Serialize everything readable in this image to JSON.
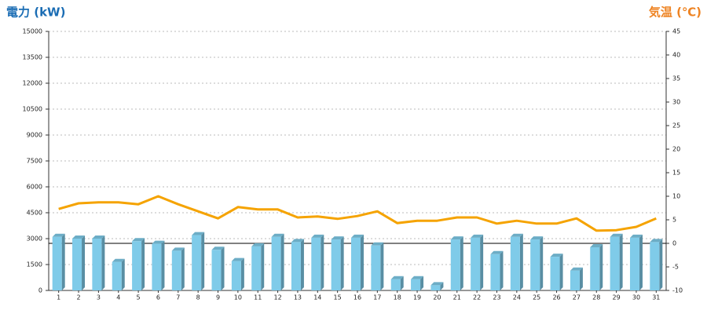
{
  "chart_data": {
    "type": "bar-line",
    "y_title": "電力 (kW)",
    "y2_title": "気温 (℃)",
    "categories": [
      "1",
      "2",
      "3",
      "4",
      "5",
      "6",
      "7",
      "8",
      "9",
      "10",
      "11",
      "12",
      "13",
      "14",
      "15",
      "16",
      "17",
      "18",
      "19",
      "20",
      "21",
      "22",
      "23",
      "24",
      "25",
      "26",
      "27",
      "28",
      "29",
      "30",
      "31"
    ],
    "series": [
      {
        "type": "bar",
        "color": "#7fcbe9",
        "values": [
          3100,
          3000,
          3000,
          1650,
          2850,
          2700,
          2300,
          3200,
          2350,
          1700,
          2550,
          3100,
          2800,
          3050,
          2950,
          3050,
          2600,
          650,
          650,
          300,
          2950,
          3050,
          2100,
          3100,
          2950,
          1950,
          1150,
          2500,
          3100,
          3050,
          2800
        ]
      },
      {
        "type": "line",
        "axis": "y2",
        "color": "#f5a300",
        "values": [
          7.3,
          8.5,
          8.7,
          8.7,
          8.3,
          10,
          8.3,
          6.8,
          5.3,
          7.7,
          7.2,
          7.2,
          5.5,
          5.7,
          5.2,
          5.8,
          6.8,
          4.3,
          4.8,
          4.8,
          5.5,
          5.5,
          4.2,
          4.8,
          4.2,
          4.2,
          5.3,
          2.7,
          2.8,
          3.5,
          5.3
        ]
      }
    ],
    "ylim": [
      0,
      15000
    ],
    "yticks": [
      0,
      1500,
      3000,
      4500,
      6000,
      7500,
      9000,
      10500,
      12000,
      13500,
      15000
    ],
    "y2lim": [
      -10,
      45
    ],
    "y2ticks": [
      -10,
      -5,
      0,
      5,
      10,
      15,
      20,
      25,
      30,
      35,
      40,
      45
    ],
    "grid": true,
    "y_title_color": "#1b6db4",
    "y2_title_color": "#ee8322"
  }
}
